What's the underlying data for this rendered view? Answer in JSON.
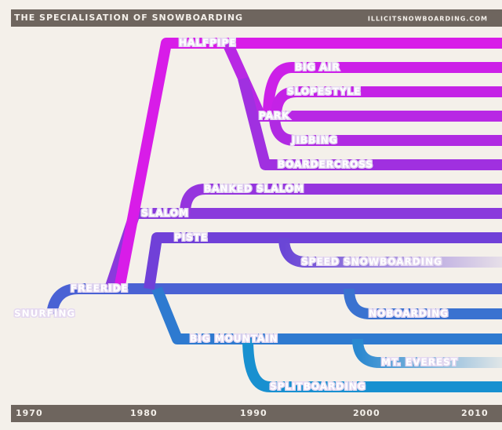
{
  "header": {
    "title": "THE SPECIALISATION OF SNOWBOARDING",
    "site": "ILLICITSNOWBOARDING.COM"
  },
  "nodes": [
    {
      "label": "HALFPIPE"
    },
    {
      "label": "BIG AIR"
    },
    {
      "label": "SLOPESTYLE"
    },
    {
      "label": "PARK"
    },
    {
      "label": "JIBBING"
    },
    {
      "label": "BOARDERCROSS"
    },
    {
      "label": "BANKED SLALOM"
    },
    {
      "label": "SLALOM"
    },
    {
      "label": "PISTE"
    },
    {
      "label": "SPEED SNOWBOARDING"
    },
    {
      "label": "FREERIDE"
    },
    {
      "label": "SNURFING"
    },
    {
      "label": "NOBOARDING"
    },
    {
      "label": "BIG MOUNTAIN"
    },
    {
      "label": "MT. EVEREST"
    },
    {
      "label": "SPLITBOARDING"
    }
  ],
  "timeline": [
    "1970",
    "1980",
    "1990",
    "2000",
    "2010"
  ]
}
